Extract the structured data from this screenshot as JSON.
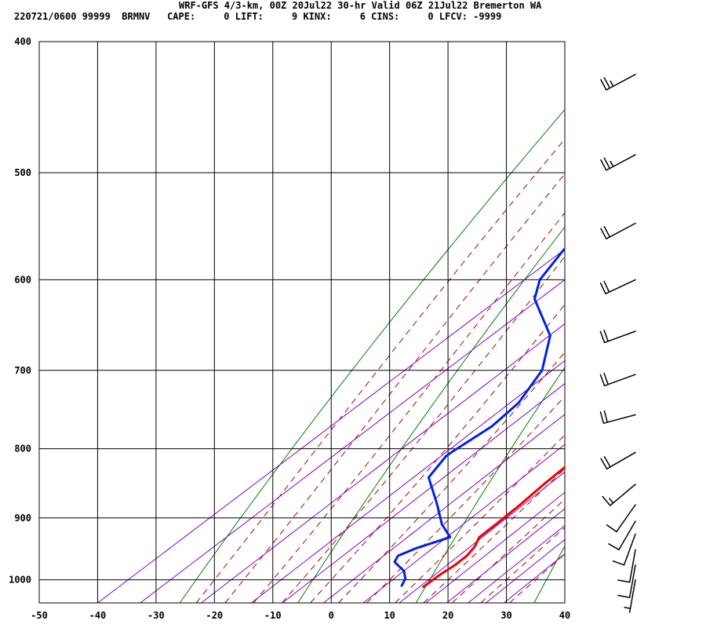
{
  "header": {
    "title": "WRF-GFS 4/3-km, 00Z 20Jul22 30-hr Valid 06Z 21Jul22 Bremerton WA",
    "subtitle": "220721/0600 99999  BRMNV   CAPE:     0 LIFT:     9 KINX:     6 CINS:     0 LFCV: -9999"
  },
  "chart_data": {
    "type": "skew-t",
    "xlim": [
      -50,
      40
    ],
    "ylim": [
      1040,
      400
    ],
    "x_ticks": [
      -50,
      -40,
      -30,
      -20,
      -10,
      0,
      10,
      20,
      30,
      40
    ],
    "x_tick_labels": [
      "-50",
      "-40",
      "-30",
      "-20",
      "-10",
      "0",
      "10",
      "20",
      "30",
      "40"
    ],
    "p_ticks": [
      400,
      500,
      600,
      700,
      800,
      900,
      1000
    ],
    "p_tick_labels": [
      "400",
      "500",
      "600",
      "700",
      "800",
      "900",
      "1000"
    ],
    "grid": true,
    "colors": {
      "temperature": "#ee0000",
      "dewpoint": "#0022dd",
      "dry_adiabat": "#008000",
      "moist_adiabat": "#aa0000",
      "mixing_ratio": "#8800cc",
      "grid": "#000000"
    },
    "temperature": {
      "pressure": [
        1012,
        1000,
        990,
        975,
        960,
        945,
        930,
        910,
        880,
        850,
        820,
        800,
        770,
        740,
        700,
        660,
        630,
        600,
        570,
        540,
        510,
        480,
        450,
        423
      ],
      "temp": [
        17.5,
        17.4,
        17.4,
        17.6,
        17.4,
        16.5,
        15.0,
        14.7,
        14.1,
        13.2,
        12.5,
        11.7,
        9.1,
        6.5,
        2.9,
        -0.9,
        -3.9,
        -7.1,
        -10.7,
        -14.7,
        -19.1,
        -23.8,
        -28.6,
        -33.1
      ]
    },
    "dewpoint": {
      "pressure": [
        1010,
        998,
        985,
        970,
        960,
        948,
        930,
        910,
        880,
        860,
        840,
        810,
        805,
        770,
        740,
        700,
        660,
        620,
        600,
        570,
        540,
        480,
        450,
        423
      ],
      "dewp": [
        13.5,
        12.4,
        10.3,
        6.5,
        5.6,
        6.8,
        10.0,
        5.5,
        -0.1,
        -4.1,
        -8.2,
        -10.4,
        -10.4,
        -9.8,
        -10.9,
        -14.8,
        -21.8,
        -33.4,
        -37.2,
        -40.4,
        -41.9,
        -46.5,
        -51.7,
        -56.6
      ]
    },
    "wind_barbs": [
      {
        "pressure": 423,
        "dir_deg": 242,
        "speed_kt": 25
      },
      {
        "pressure": 485,
        "dir_deg": 242,
        "speed_kt": 25
      },
      {
        "pressure": 545,
        "dir_deg": 242,
        "speed_kt": 20
      },
      {
        "pressure": 600,
        "dir_deg": 245,
        "speed_kt": 20
      },
      {
        "pressure": 655,
        "dir_deg": 250,
        "speed_kt": 20
      },
      {
        "pressure": 705,
        "dir_deg": 250,
        "speed_kt": 20
      },
      {
        "pressure": 755,
        "dir_deg": 255,
        "speed_kt": 20
      },
      {
        "pressure": 805,
        "dir_deg": 240,
        "speed_kt": 20
      },
      {
        "pressure": 850,
        "dir_deg": 230,
        "speed_kt": 15
      },
      {
        "pressure": 880,
        "dir_deg": 215,
        "speed_kt": 10
      },
      {
        "pressure": 905,
        "dir_deg": 210,
        "speed_kt": 10
      },
      {
        "pressure": 925,
        "dir_deg": 200,
        "speed_kt": 10
      },
      {
        "pressure": 950,
        "dir_deg": 190,
        "speed_kt": 10
      },
      {
        "pressure": 975,
        "dir_deg": 190,
        "speed_kt": 10
      },
      {
        "pressure": 1000,
        "dir_deg": 190,
        "speed_kt": 5
      }
    ],
    "dry_adiabats_theta_K": [
      250,
      270,
      290,
      310,
      330,
      350,
      370,
      390,
      410,
      430,
      450
    ],
    "moist_adiabats_thetaw_C": [
      -20,
      -15,
      -10,
      -5,
      0,
      5,
      10,
      15,
      20,
      25,
      30,
      35
    ],
    "mixing_ratios_gkg": [
      0.2,
      0.4,
      1,
      2,
      3,
      5,
      8,
      12,
      16,
      20,
      25,
      30,
      36
    ]
  }
}
